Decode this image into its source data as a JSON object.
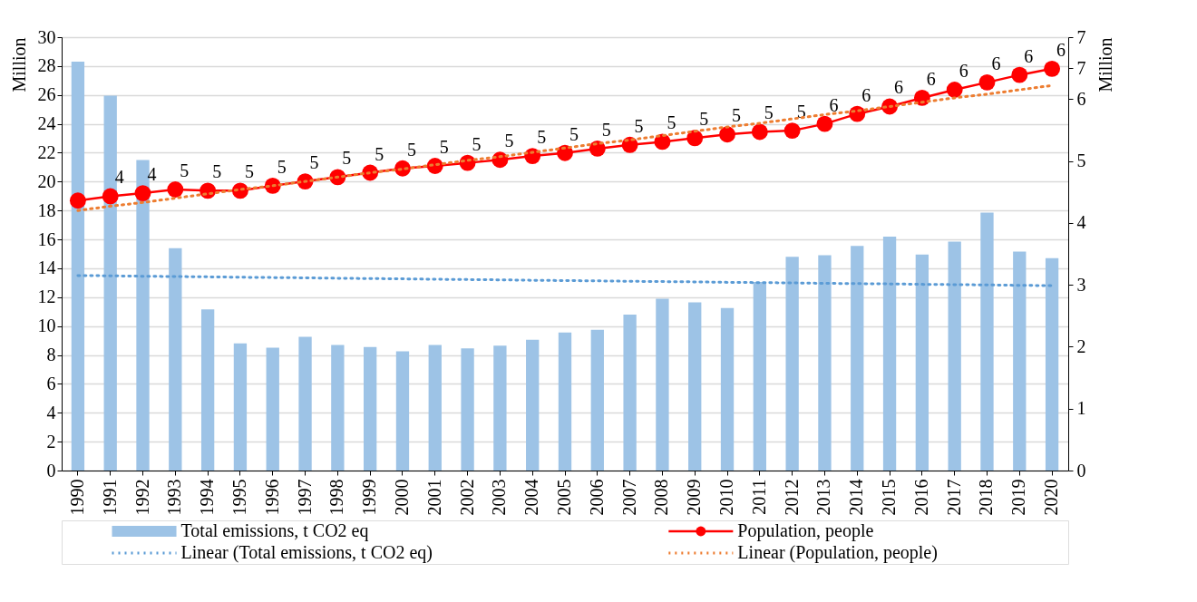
{
  "chart_data": {
    "type": "bar",
    "categories": [
      "1990",
      "1991",
      "1992",
      "1993",
      "1994",
      "1995",
      "1996",
      "1997",
      "1998",
      "1999",
      "2000",
      "2001",
      "2002",
      "2003",
      "2004",
      "2005",
      "2006",
      "2007",
      "2008",
      "2009",
      "2010",
      "2011",
      "2012",
      "2013",
      "2014",
      "2015",
      "2016",
      "2017",
      "2018",
      "2019",
      "2020"
    ],
    "series": [
      {
        "name": "Total emissions, t CO2 eq",
        "color": "#9dc3e6",
        "values": [
          28.3,
          25.95,
          21.5,
          15.4,
          11.15,
          8.8,
          8.5,
          9.25,
          8.7,
          8.55,
          8.25,
          8.7,
          8.45,
          8.65,
          9.05,
          9.55,
          9.75,
          10.8,
          11.9,
          11.65,
          11.25,
          13.05,
          14.8,
          14.9,
          15.55,
          16.2,
          14.95,
          15.85,
          17.85,
          15.15,
          14.7
        ]
      },
      {
        "name": "Population, people",
        "type": "line",
        "axis": "y2",
        "marker": "circle",
        "line_style": "solid",
        "color": "#ff0000",
        "values": [
          4.36,
          4.43,
          4.48,
          4.54,
          4.52,
          4.52,
          4.6,
          4.67,
          4.74,
          4.81,
          4.88,
          4.92,
          4.97,
          5.02,
          5.08,
          5.13,
          5.2,
          5.26,
          5.31,
          5.37,
          5.43,
          5.47,
          5.49,
          5.6,
          5.76,
          5.88,
          6.02,
          6.15,
          6.27,
          6.39,
          6.49
        ],
        "value_labels": [
          null,
          "4",
          "4",
          "5",
          "5",
          "5",
          "5",
          "5",
          "5",
          "5",
          "5",
          "5",
          "5",
          "5",
          "5",
          "5",
          "5",
          "5",
          "5",
          "5",
          "5",
          "5",
          "5",
          "6",
          "6",
          "6",
          "6",
          "6",
          "6",
          "6",
          "6"
        ]
      },
      {
        "name": "Linear (Total emissions, t CO2 eq)",
        "type": "line",
        "line_style": "dotted",
        "marker": "none",
        "color": "#5b9bd5",
        "values": [
          13.5,
          13.48,
          13.45,
          13.43,
          13.41,
          13.38,
          13.36,
          13.34,
          13.31,
          13.29,
          13.27,
          13.24,
          13.22,
          13.2,
          13.17,
          13.15,
          13.13,
          13.1,
          13.08,
          13.06,
          13.03,
          13.01,
          12.99,
          12.96,
          12.94,
          12.92,
          12.89,
          12.87,
          12.85,
          12.82,
          12.8
        ]
      },
      {
        "name": "Linear (Population, people)",
        "type": "line",
        "axis": "y2",
        "line_style": "dotted",
        "marker": "none",
        "color": "#ed7d31",
        "values": [
          4.2,
          4.27,
          4.33,
          4.4,
          4.47,
          4.54,
          4.6,
          4.67,
          4.74,
          4.81,
          4.87,
          4.94,
          5.01,
          5.07,
          5.14,
          5.21,
          5.28,
          5.34,
          5.41,
          5.48,
          5.55,
          5.61,
          5.68,
          5.75,
          5.81,
          5.88,
          5.95,
          6.02,
          6.08,
          6.15,
          6.22
        ]
      }
    ],
    "ylabel": "Million",
    "y2label": "Million",
    "ylim": [
      0,
      30
    ],
    "yticks": [
      0,
      2,
      4,
      6,
      8,
      10,
      12,
      14,
      16,
      18,
      20,
      22,
      24,
      26,
      28,
      30
    ],
    "y2lim": [
      0,
      7
    ],
    "y2ticks": [
      0,
      1,
      2,
      3,
      4,
      5,
      6,
      {
        "value": 6.5,
        "label": "7"
      },
      7
    ],
    "grid": "y",
    "legend": "bottom"
  }
}
